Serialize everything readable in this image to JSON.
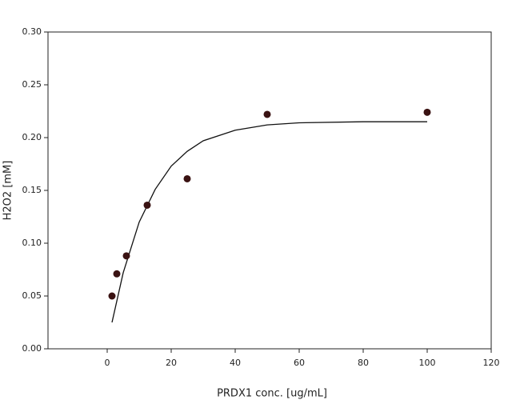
{
  "chart_data": {
    "type": "scatter",
    "x_label": "PRDX1 conc. [ug/mL]",
    "y_label": "H2O2 [mM]",
    "x": [
      1.5,
      3,
      6,
      12.5,
      25,
      50,
      100
    ],
    "values": [
      0.05,
      0.071,
      0.088,
      0.136,
      0.161,
      0.222,
      0.224
    ],
    "color": "#3a1212",
    "fit": {
      "x": [
        1.5,
        5,
        10,
        15,
        20,
        25,
        30,
        40,
        50,
        60,
        80,
        100
      ],
      "values": [
        0.025,
        0.072,
        0.12,
        0.151,
        0.173,
        0.187,
        0.197,
        0.207,
        0.212,
        0.214,
        0.215,
        0.215
      ],
      "color": "#111111"
    },
    "xlim": [
      -18.5,
      120
    ],
    "ylim": [
      0,
      0.3
    ],
    "xticks": [
      0,
      20,
      40,
      60,
      80,
      100,
      120
    ],
    "yticks": [
      {
        "value": 0,
        "label": "0.00"
      },
      {
        "value": 0.05,
        "label": "0.05"
      },
      {
        "value": 0.1,
        "label": "0.10"
      },
      {
        "value": 0.15,
        "label": "0.15"
      },
      {
        "value": 0.2,
        "label": "0.20"
      },
      {
        "value": 0.25,
        "label": "0.25"
      },
      {
        "value": 0.3,
        "label": "0.30"
      }
    ]
  }
}
